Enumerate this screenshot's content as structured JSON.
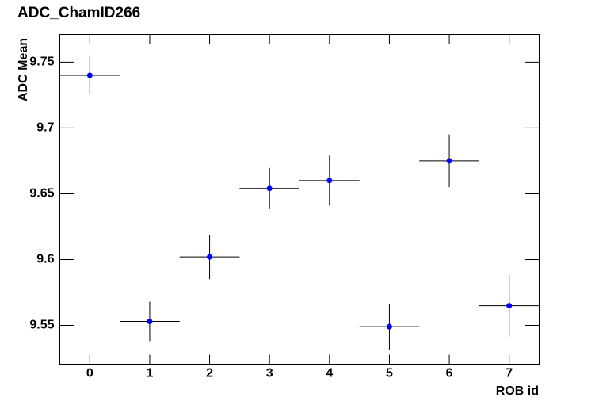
{
  "chart_data": {
    "type": "errorbar",
    "title": "ADC_ChamID266",
    "xlabel": "ROB id",
    "ylabel": "ADC Mean",
    "x": [
      0,
      1,
      2,
      3,
      4,
      5,
      6,
      7
    ],
    "values": [
      9.74,
      9.553,
      9.602,
      9.654,
      9.66,
      9.549,
      9.675,
      9.565
    ],
    "yerr": [
      0.0148,
      0.015,
      0.0169,
      0.0157,
      0.019,
      0.0175,
      0.02,
      0.0235
    ],
    "xerr": [
      0.5,
      0.5,
      0.5,
      0.5,
      0.5,
      0.5,
      0.5,
      0.5
    ],
    "color": "#0000ff",
    "xlim": [
      -0.5,
      7.5
    ],
    "xticks": [
      0,
      1,
      2,
      3,
      4,
      5,
      6,
      7
    ],
    "ylim": [
      9.5205,
      9.771
    ],
    "yticks": [
      9.55,
      9.6,
      9.65,
      9.7,
      9.75
    ]
  }
}
